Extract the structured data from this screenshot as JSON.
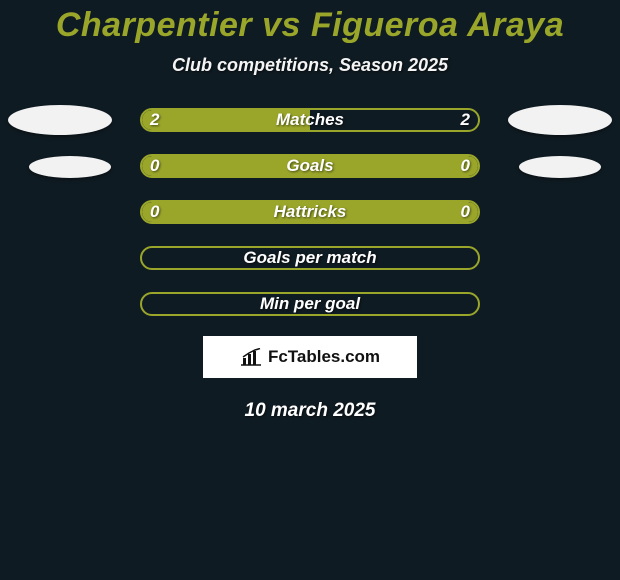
{
  "colors": {
    "background": "#0f1b22",
    "title": "#9aa62a",
    "subtitle": "#f4f4f4",
    "row_text": "#ffffff",
    "bar_border": "#9aa62a",
    "bar_fill": "#9aa62a",
    "bar_empty": "transparent",
    "dot": "#f2f2f2",
    "brand_bg": "#ffffff",
    "brand_text": "#111111",
    "footer_text": "#ffffff"
  },
  "typography": {
    "title_fontsize": 34,
    "subtitle_fontsize": 18,
    "row_label_fontsize": 17,
    "row_value_fontsize": 17,
    "brand_fontsize": 17,
    "footer_fontsize": 19
  },
  "layout": {
    "brand_width": 214,
    "brand_height": 42
  },
  "header": {
    "title": "Charpentier vs Figueroa Araya",
    "subtitle": "Club competitions, Season 2025"
  },
  "rows": [
    {
      "label": "Matches",
      "left": "2",
      "right": "2",
      "fill_pct": 50,
      "dots": "big"
    },
    {
      "label": "Goals",
      "left": "0",
      "right": "0",
      "fill_pct": 100,
      "dots": "small"
    },
    {
      "label": "Hattricks",
      "left": "0",
      "right": "0",
      "fill_pct": 100,
      "dots": "none"
    },
    {
      "label": "Goals per match",
      "left": "",
      "right": "",
      "fill_pct": 0,
      "dots": "none"
    },
    {
      "label": "Min per goal",
      "left": "",
      "right": "",
      "fill_pct": 0,
      "dots": "none"
    }
  ],
  "brand": {
    "text": "FcTables.com",
    "icon": "bar-chart-icon"
  },
  "footer": {
    "date": "10 march 2025"
  }
}
